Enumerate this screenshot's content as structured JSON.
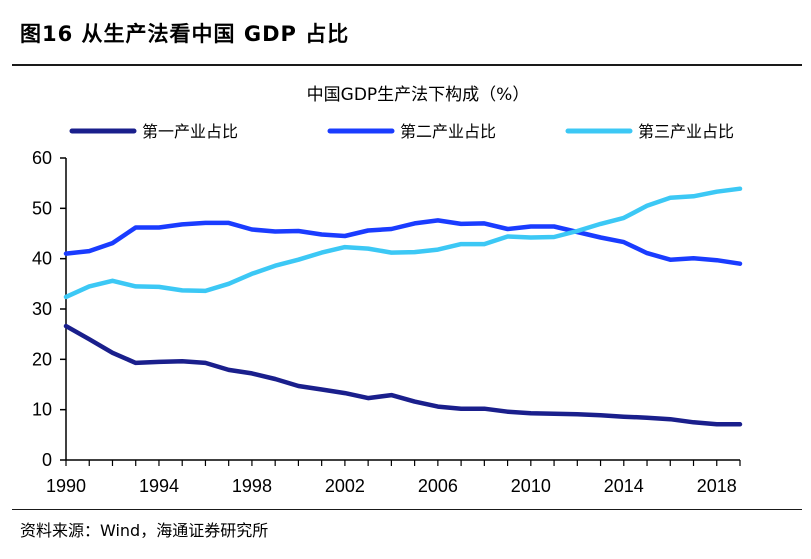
{
  "figure": {
    "title": "图16 从生产法看中国 GDP 占比",
    "source": "资料来源：Wind，海通证券研究所"
  },
  "chart_data": {
    "type": "line",
    "title": "中国GDP生产法下构成（%）",
    "xlabel": "",
    "ylabel": "",
    "xlim": [
      1990,
      2019
    ],
    "ylim": [
      0,
      60
    ],
    "yticks": [
      0,
      10,
      20,
      30,
      40,
      50,
      60
    ],
    "xticks": [
      1990,
      1994,
      1998,
      2002,
      2006,
      2010,
      2014,
      2018
    ],
    "legend": "top",
    "grid": false,
    "x": [
      1990,
      1991,
      1992,
      1993,
      1994,
      1995,
      1996,
      1997,
      1998,
      1999,
      2000,
      2001,
      2002,
      2003,
      2004,
      2005,
      2006,
      2007,
      2008,
      2009,
      2010,
      2011,
      2012,
      2013,
      2014,
      2015,
      2016,
      2017,
      2018,
      2019
    ],
    "series": [
      {
        "name": "第一产业占比",
        "color": "#1a1f8c",
        "values": [
          26.6,
          24.0,
          21.3,
          19.3,
          19.5,
          19.6,
          19.3,
          17.9,
          17.2,
          16.1,
          14.7,
          14.0,
          13.3,
          12.3,
          12.9,
          11.6,
          10.6,
          10.2,
          10.2,
          9.6,
          9.3,
          9.2,
          9.1,
          8.9,
          8.6,
          8.4,
          8.1,
          7.5,
          7.1,
          7.1
        ]
      },
      {
        "name": "第二产业占比",
        "color": "#1a3cff",
        "values": [
          41.0,
          41.5,
          43.1,
          46.2,
          46.2,
          46.8,
          47.1,
          47.1,
          45.8,
          45.4,
          45.5,
          44.8,
          44.5,
          45.6,
          45.9,
          47.0,
          47.6,
          46.9,
          47.0,
          45.9,
          46.4,
          46.4,
          45.3,
          44.2,
          43.3,
          41.1,
          39.8,
          40.1,
          39.7,
          39.0
        ]
      },
      {
        "name": "第三产业占比",
        "color": "#3cc8f5",
        "values": [
          32.4,
          34.5,
          35.6,
          34.5,
          34.4,
          33.7,
          33.6,
          35.0,
          37.0,
          38.6,
          39.8,
          41.2,
          42.3,
          42.0,
          41.2,
          41.3,
          41.8,
          42.9,
          42.9,
          44.4,
          44.2,
          44.3,
          45.5,
          46.9,
          48.1,
          50.5,
          52.1,
          52.4,
          53.3,
          53.9
        ]
      }
    ]
  }
}
